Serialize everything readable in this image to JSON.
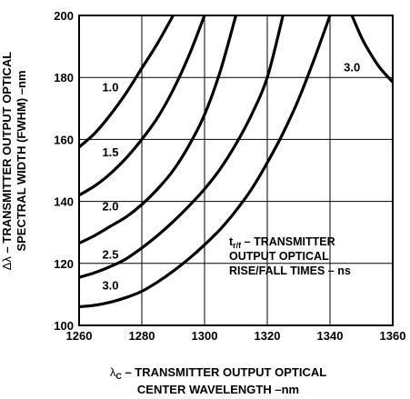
{
  "chart_data": {
    "type": "line",
    "xlim": [
      1260,
      1360
    ],
    "ylim": [
      100,
      200
    ],
    "x_ticks": [
      1260,
      1280,
      1300,
      1320,
      1340,
      1360
    ],
    "y_ticks": [
      100,
      120,
      140,
      160,
      180,
      200
    ],
    "grid": true,
    "xlabel": {
      "symbol": "λ",
      "subscript": "C",
      "line1": " – TRANSMITTER OUTPUT OPTICAL",
      "line2": "CENTER WAVELENGTH –nm"
    },
    "ylabel": {
      "symbol": "Δλ",
      "line1": " – TRANSMITTER OUTPUT OPTICAL",
      "line2": "SPECTRAL WIDTH (FWHM) –nm"
    },
    "annotation": {
      "symbol": "t",
      "subscript": "r/f",
      "line1": " – TRANSMITTER",
      "line2": "OUTPUT OPTICAL",
      "line3": "RISE/FALL TIMES – ns"
    },
    "series": [
      {
        "name": "1.0",
        "points": [
          [
            1260,
            157.5
          ],
          [
            1265,
            162
          ],
          [
            1270,
            168
          ],
          [
            1275,
            175
          ],
          [
            1280,
            183
          ],
          [
            1285,
            191
          ],
          [
            1290,
            200
          ]
        ]
      },
      {
        "name": "1.5",
        "points": [
          [
            1260,
            142
          ],
          [
            1265,
            145
          ],
          [
            1270,
            149
          ],
          [
            1275,
            154
          ],
          [
            1280,
            160
          ],
          [
            1285,
            167
          ],
          [
            1290,
            176
          ],
          [
            1295,
            187
          ],
          [
            1300,
            200
          ]
        ]
      },
      {
        "name": "2.0",
        "points": [
          [
            1260,
            126.5
          ],
          [
            1265,
            129
          ],
          [
            1270,
            132
          ],
          [
            1275,
            135
          ],
          [
            1280,
            139
          ],
          [
            1285,
            144
          ],
          [
            1290,
            150
          ],
          [
            1295,
            158
          ],
          [
            1300,
            168
          ],
          [
            1305,
            182
          ],
          [
            1310,
            200
          ]
        ]
      },
      {
        "name": "2.5",
        "points": [
          [
            1260,
            115.5
          ],
          [
            1265,
            117
          ],
          [
            1270,
            119
          ],
          [
            1275,
            121.5
          ],
          [
            1280,
            125
          ],
          [
            1285,
            129
          ],
          [
            1290,
            133.5
          ],
          [
            1295,
            138.5
          ],
          [
            1300,
            144
          ],
          [
            1305,
            150.5
          ],
          [
            1310,
            158.5
          ],
          [
            1315,
            168
          ],
          [
            1320,
            180
          ],
          [
            1325,
            200
          ]
        ]
      },
      {
        "name": "3.0",
        "points": [
          [
            1260,
            106
          ],
          [
            1265,
            106.5
          ],
          [
            1270,
            107.5
          ],
          [
            1275,
            109
          ],
          [
            1280,
            111
          ],
          [
            1285,
            114
          ],
          [
            1290,
            117.5
          ],
          [
            1295,
            121.5
          ],
          [
            1300,
            126
          ],
          [
            1305,
            131
          ],
          [
            1310,
            137
          ],
          [
            1315,
            144
          ],
          [
            1320,
            152.5
          ],
          [
            1325,
            162
          ],
          [
            1330,
            173
          ],
          [
            1335,
            186
          ],
          [
            1340,
            200
          ]
        ]
      },
      {
        "name": "3.0",
        "points": [
          [
            1347,
            200
          ],
          [
            1350,
            193
          ],
          [
            1353,
            187.5
          ],
          [
            1356,
            183
          ],
          [
            1360,
            178.5
          ]
        ]
      }
    ],
    "curve_labels": [
      {
        "text": "1.0",
        "at": [
          1270,
          177
        ]
      },
      {
        "text": "1.5",
        "at": [
          1270,
          156
        ]
      },
      {
        "text": "2.0",
        "at": [
          1270,
          138.5
        ]
      },
      {
        "text": "2.5",
        "at": [
          1270,
          123
        ]
      },
      {
        "text": "3.0",
        "at": [
          1270,
          113
        ]
      },
      {
        "text": "3.0",
        "at": [
          1347,
          183.5
        ]
      }
    ]
  }
}
